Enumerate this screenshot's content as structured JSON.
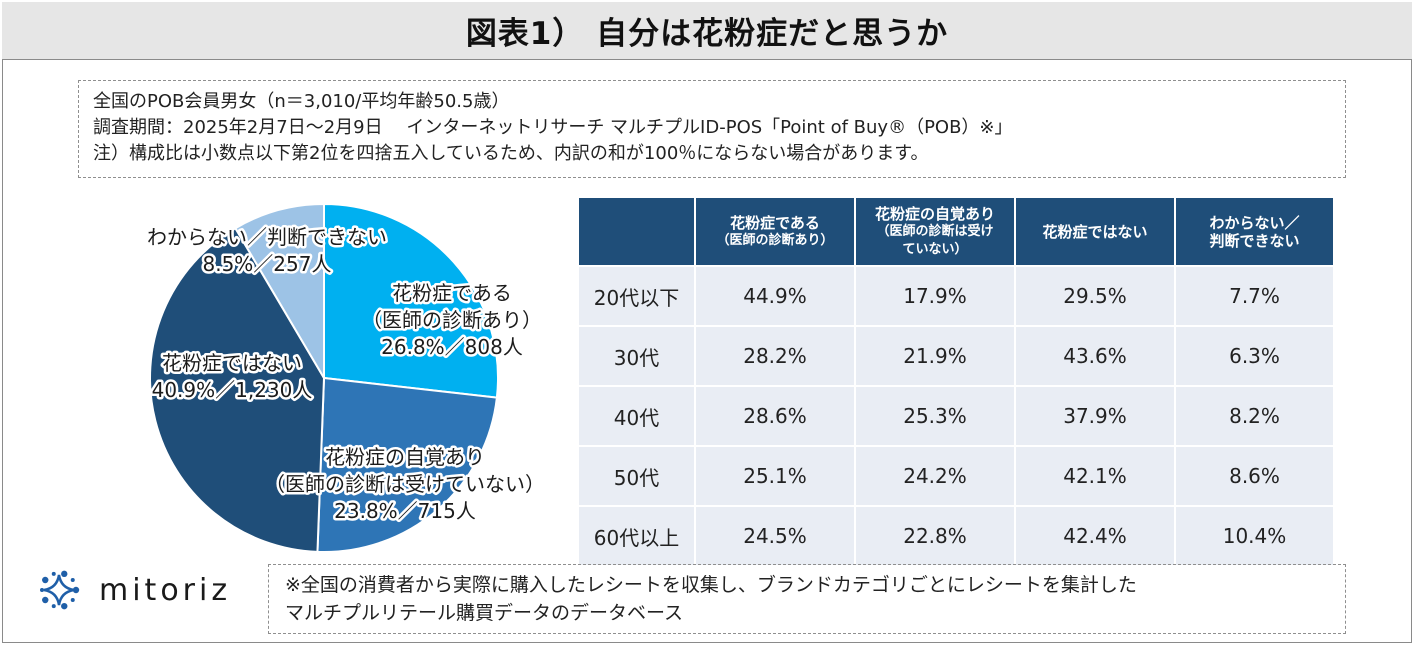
{
  "title": "図表1） 自分は花粉症だと思うか",
  "info": {
    "line1": "全国のPOB会員男女（n＝3,010/平均年齢50.5歳）",
    "line2": "調査期間：2025年2月7日～2月9日　 インターネットリサーチ マルチプルID-POS「Point of Buy®（POB）※」",
    "line3": "注）構成比は小数点以下第2位を四捨五入しているため、内訳の和が100％にならない場合があります。"
  },
  "chart_data": [
    {
      "type": "pie",
      "title": "",
      "slices": [
        {
          "label": "花粉症である",
          "sublabel": "（医師の診断あり）",
          "value_text": "26.8%／808人",
          "value": 26.8,
          "count": 808,
          "color": "#00b0f0"
        },
        {
          "label": "花粉症の自覚あり",
          "sublabel": "（医師の診断は受けていない）",
          "value_text": "23.8%／715人",
          "value": 23.8,
          "count": 715,
          "color": "#2e75b6"
        },
        {
          "label": "花粉症ではない",
          "sublabel": "",
          "value_text": "40.9%／1,230人",
          "value": 40.9,
          "count": 1230,
          "color": "#1f4e79"
        },
        {
          "label": "わからない／判断できない",
          "sublabel": "",
          "value_text": "8.5%／257人",
          "value": 8.5,
          "count": 257,
          "color": "#9dc3e6"
        }
      ]
    },
    {
      "type": "table",
      "columns": [
        "",
        "花粉症である",
        "花粉症の自覚あり",
        "花粉症ではない",
        "わからない／"
      ],
      "column_sublabels": [
        "",
        "（医師の診断あり）",
        "（医師の診断は受け",
        "",
        "判断できない"
      ],
      "column_sublabels2": [
        "",
        "",
        "ていない）",
        "",
        ""
      ],
      "rows": [
        {
          "label": "20代以下",
          "values": [
            "44.9%",
            "17.9%",
            "29.5%",
            "7.7%"
          ]
        },
        {
          "label": "30代",
          "values": [
            "28.2%",
            "21.9%",
            "43.6%",
            "6.3%"
          ]
        },
        {
          "label": "40代",
          "values": [
            "28.6%",
            "25.3%",
            "37.9%",
            "8.2%"
          ]
        },
        {
          "label": "50代",
          "values": [
            "25.1%",
            "24.2%",
            "42.1%",
            "8.6%"
          ]
        },
        {
          "label": "60代以上",
          "values": [
            "24.5%",
            "22.8%",
            "42.4%",
            "10.4%"
          ]
        }
      ]
    }
  ],
  "logo": {
    "text": "mitoriz",
    "icon": "sparkle-ring-icon",
    "color": "#1f5fa8"
  },
  "note": {
    "line1": "※全国の消費者から実際に購入したレシートを収集し、ブランドカテゴリごとにレシートを集計した",
    "line2": "マルチプルリテール購買データのデータベース"
  }
}
